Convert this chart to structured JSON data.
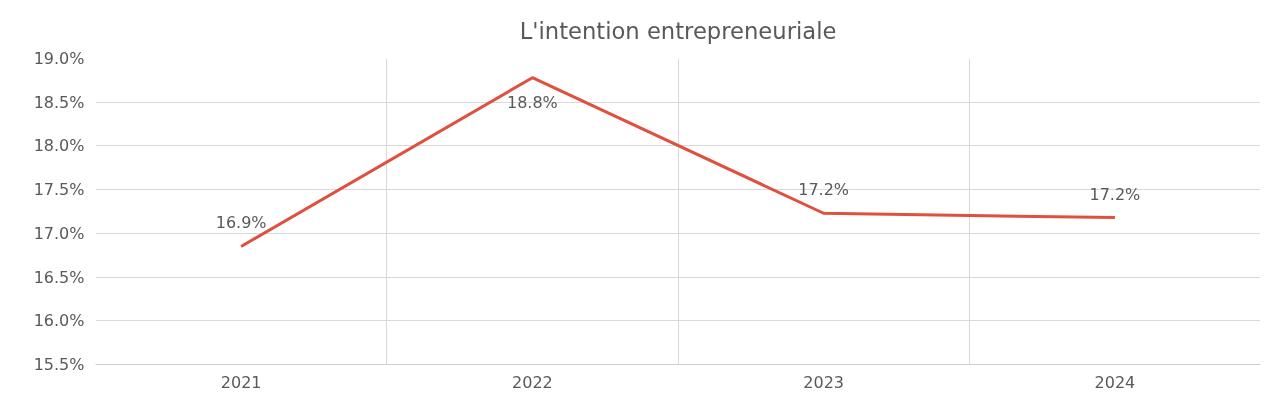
{
  "chart_data": {
    "type": "line",
    "title": "L'intention entrepreneuriale",
    "categories": [
      "2021",
      "2022",
      "2023",
      "2024"
    ],
    "series": [
      {
        "color": "#e0503f",
        "values": [
          16.85,
          18.78,
          17.23,
          17.18
        ],
        "value_labels": [
          "16.9%",
          "18.8%",
          "17.2%",
          "17.2%"
        ]
      }
    ],
    "ylim": [
      15.5,
      19.0
    ],
    "yticks": [
      {
        "value": 15.5,
        "label": "15.5%"
      },
      {
        "value": 16.0,
        "label": "16.0%"
      },
      {
        "value": 16.5,
        "label": "16.5%"
      },
      {
        "value": 17.0,
        "label": "17.0%"
      },
      {
        "value": 17.5,
        "label": "17.5%"
      },
      {
        "value": 18.0,
        "label": "18.0%"
      },
      {
        "value": 18.5,
        "label": "18.5%"
      },
      {
        "value": 19.0,
        "label": "19.0%"
      }
    ],
    "grid": true,
    "marker": "none",
    "line_style": "solid"
  }
}
